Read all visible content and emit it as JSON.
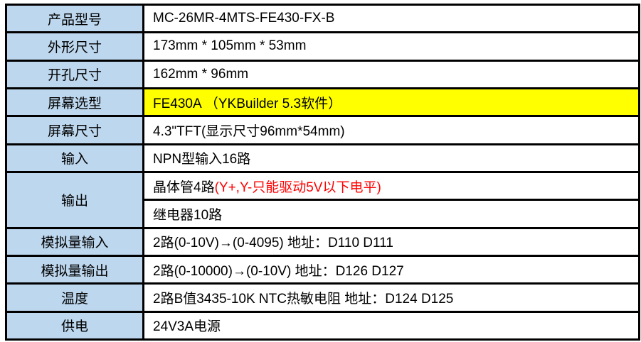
{
  "table": {
    "label_bg": "#BDD7EE",
    "highlight_bg": "#FFFF00",
    "red_color": "#FF0000",
    "border_color": "#000000",
    "rows": [
      {
        "label": "产品型号",
        "value": "MC-26MR-4MTS-FE430-FX-B"
      },
      {
        "label": "外形尺寸",
        "value": "173mm * 105mm * 53mm"
      },
      {
        "label": "开孔尺寸",
        "value": "162mm * 96mm"
      },
      {
        "label": "屏幕选型",
        "value": "FE430A （YKBuilder 5.3软件）",
        "highlight": true
      },
      {
        "label": "屏幕尺寸",
        "value": "4.3\"TFT(显示尺寸96mm*54mm)"
      },
      {
        "label": "输入",
        "value": "NPN型输入16路"
      },
      {
        "label": "输出",
        "value_black": "晶体管4路",
        "value_red": "(Y+,Y-只能驱动5V以下电平)",
        "value_second": "继电器10路"
      },
      {
        "label": "模拟量输入",
        "value": "2路(0-10V)→(0-4095) 地址：D110  D111"
      },
      {
        "label": "模拟量输出",
        "value": "2路(0-10000)→(0-10V) 地址：D126  D127"
      },
      {
        "label": "温度",
        "value": "2路B值3435-10K NTC热敏电阻 地址：D124  D125"
      },
      {
        "label": "供电",
        "value": "24V3A电源"
      }
    ]
  }
}
